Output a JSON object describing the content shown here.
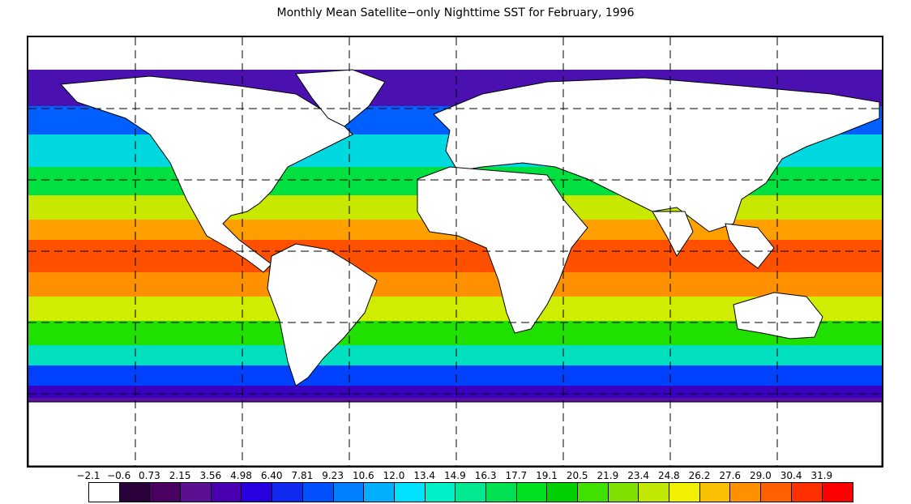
{
  "title": "Monthly Mean Satellite−only Nighttime SST for February, 1996",
  "colorbar": {
    "labels": [
      "−2.1",
      "−0.6",
      "0.73",
      "2.15",
      "3.56",
      "4.98",
      "6.40",
      "7.81",
      "9.23",
      "10.6",
      "12.0",
      "13.4",
      "14.9",
      "16.3",
      "17.7",
      "19.1",
      "20.5",
      "21.9",
      "23.4",
      "24.8",
      "26.2",
      "27.6",
      "29.0",
      "30.4",
      "31.9"
    ],
    "colors": [
      "#ffffff",
      "#2a003a",
      "#4a0060",
      "#5a1090",
      "#4a00b0",
      "#2800e0",
      "#1028f0",
      "#0050ff",
      "#0080ff",
      "#00b0ff",
      "#00e0ff",
      "#00f0c8",
      "#00e890",
      "#00e050",
      "#00e020",
      "#00d000",
      "#40e000",
      "#80e000",
      "#c0e800",
      "#f0f000",
      "#f8c000",
      "#ff9000",
      "#ff6000",
      "#ff3000",
      "#ff0000"
    ]
  },
  "map": {
    "land_color": "#ffffff",
    "coastline_color": "#000000",
    "grid_style": "dashed",
    "bands": [
      {
        "name": "arctic-ice",
        "color": "#ffffff"
      },
      {
        "name": "subpolar-north",
        "color": "#4a10b0"
      },
      {
        "name": "cold-north",
        "color": "#0060ff"
      },
      {
        "name": "cool-north",
        "color": "#00d8e0"
      },
      {
        "name": "temperate-north",
        "color": "#00e040"
      },
      {
        "name": "warm-north",
        "color": "#c8e800"
      },
      {
        "name": "subtropical-north",
        "color": "#ffa000"
      },
      {
        "name": "tropical",
        "color": "#ff5000"
      },
      {
        "name": "subtropical-south",
        "color": "#ff9000"
      },
      {
        "name": "warm-south",
        "color": "#d0ec00"
      },
      {
        "name": "temperate-south",
        "color": "#20e000"
      },
      {
        "name": "cool-south",
        "color": "#00e0c0"
      },
      {
        "name": "cold-south",
        "color": "#0040ff"
      },
      {
        "name": "subpolar-south",
        "color": "#3a00c0"
      },
      {
        "name": "antarctic-edge",
        "color": "#5a10a0"
      },
      {
        "name": "antarctica",
        "color": "#ffffff"
      }
    ]
  }
}
